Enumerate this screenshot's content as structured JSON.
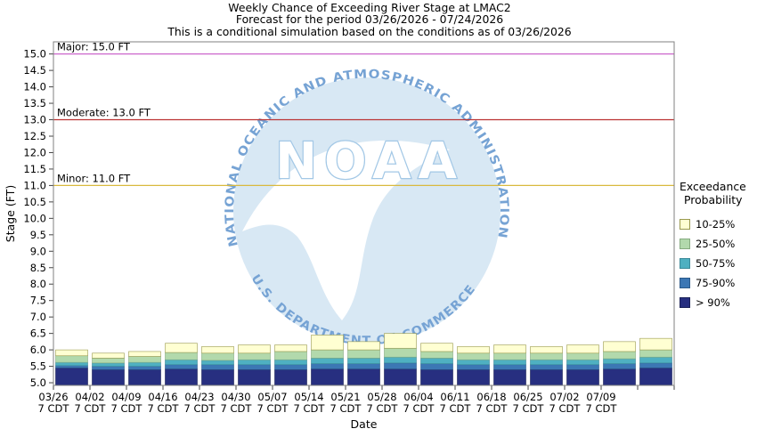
{
  "chart_data": {
    "type": "bar",
    "stacked": true,
    "title": "Weekly Chance of Exceeding River Stage at LMAC2",
    "subtitle": "Forecast for the period 03/26/2026 - 07/24/2026",
    "note": "This is a conditional simulation based on the conditions as of 03/26/2026",
    "xlabel": "Date",
    "ylabel": "Stage (FT)",
    "ylim": [
      5.0,
      15.0
    ],
    "ytick_step": 0.5,
    "baseline": 5.0,
    "grid": false,
    "legend_position": "right",
    "flood_categories": [
      {
        "label": "Major: 15.0 FT",
        "value": 15.0,
        "color": "#cc66cc"
      },
      {
        "label": "Moderate: 13.0 FT",
        "value": 13.0,
        "color": "#bb3333"
      },
      {
        "label": "Minor: 11.0 FT",
        "value": 11.0,
        "color": "#d9b93e"
      }
    ],
    "series": [
      {
        "id": "gt90",
        "name": "> 90%",
        "color": "#272f80",
        "border": "#1a2158"
      },
      {
        "id": "p75-90",
        "name": "75-90%",
        "color": "#3c77b4",
        "border": "#2c5a8a"
      },
      {
        "id": "p50-75",
        "name": "50-75%",
        "color": "#4fb0c1",
        "border": "#3b8a99"
      },
      {
        "id": "p25-50",
        "name": "25-50%",
        "color": "#b2d9ac",
        "border": "#86ab80"
      },
      {
        "id": "p10-25",
        "name": "10-25%",
        "color": "#ffffd2",
        "border": "#99994f"
      }
    ],
    "x_ticks": [
      {
        "date": "03/26",
        "time": "7 CDT"
      },
      {
        "date": "04/02",
        "time": "7 CDT"
      },
      {
        "date": "04/09",
        "time": "7 CDT"
      },
      {
        "date": "04/16",
        "time": "7 CDT"
      },
      {
        "date": "04/23",
        "time": "7 CDT"
      },
      {
        "date": "04/30",
        "time": "7 CDT"
      },
      {
        "date": "05/07",
        "time": "7 CDT"
      },
      {
        "date": "05/14",
        "time": "7 CDT"
      },
      {
        "date": "05/21",
        "time": "7 CDT"
      },
      {
        "date": "05/28",
        "time": "7 CDT"
      },
      {
        "date": "06/04",
        "time": "7 CDT"
      },
      {
        "date": "06/11",
        "time": "7 CDT"
      },
      {
        "date": "06/18",
        "time": "7 CDT"
      },
      {
        "date": "06/25",
        "time": "7 CDT"
      },
      {
        "date": "07/02",
        "time": "7 CDT"
      },
      {
        "date": "07/09",
        "time": "7 CDT"
      }
    ],
    "bars": [
      [
        5.45,
        5.52,
        5.62,
        5.82,
        6.0
      ],
      [
        5.4,
        5.5,
        5.6,
        5.75,
        5.9
      ],
      [
        5.4,
        5.5,
        5.62,
        5.8,
        5.95
      ],
      [
        5.42,
        5.55,
        5.7,
        5.92,
        6.2
      ],
      [
        5.4,
        5.55,
        5.68,
        5.9,
        6.1
      ],
      [
        5.4,
        5.55,
        5.7,
        5.9,
        6.15
      ],
      [
        5.4,
        5.55,
        5.7,
        5.95,
        6.15
      ],
      [
        5.42,
        5.58,
        5.75,
        6.0,
        6.45
      ],
      [
        5.42,
        5.58,
        5.75,
        6.0,
        6.25
      ],
      [
        5.42,
        5.6,
        5.78,
        6.05,
        6.5
      ],
      [
        5.4,
        5.58,
        5.75,
        5.95,
        6.2
      ],
      [
        5.4,
        5.55,
        5.7,
        5.9,
        6.1
      ],
      [
        5.4,
        5.55,
        5.7,
        5.9,
        6.15
      ],
      [
        5.4,
        5.55,
        5.7,
        5.9,
        6.1
      ],
      [
        5.4,
        5.55,
        5.7,
        5.9,
        6.15
      ],
      [
        5.42,
        5.58,
        5.73,
        5.95,
        6.25
      ],
      [
        5.45,
        5.6,
        5.78,
        6.0,
        6.35
      ]
    ],
    "legend": {
      "title_line1": "Exceedance",
      "title_line2": "Probability",
      "entries": [
        {
          "label": "10-25%",
          "color": "#ffffd2",
          "border": "#99994f"
        },
        {
          "label": "25-50%",
          "color": "#b2d9ac",
          "border": "#86ab80"
        },
        {
          "label": "50-75%",
          "color": "#4fb0c1",
          "border": "#3b8a99"
        },
        {
          "label": "75-90%",
          "color": "#3c77b4",
          "border": "#2c5a8a"
        },
        {
          "label": "> 90%",
          "color": "#272f80",
          "border": "#1a2158"
        }
      ]
    },
    "watermark": {
      "text": "NOAA",
      "ring_top": "NATIONAL OCEANIC AND ATMOSPHERIC ADMINISTRATION",
      "ring_bottom": "U.S. DEPARTMENT OF COMMERCE"
    }
  }
}
